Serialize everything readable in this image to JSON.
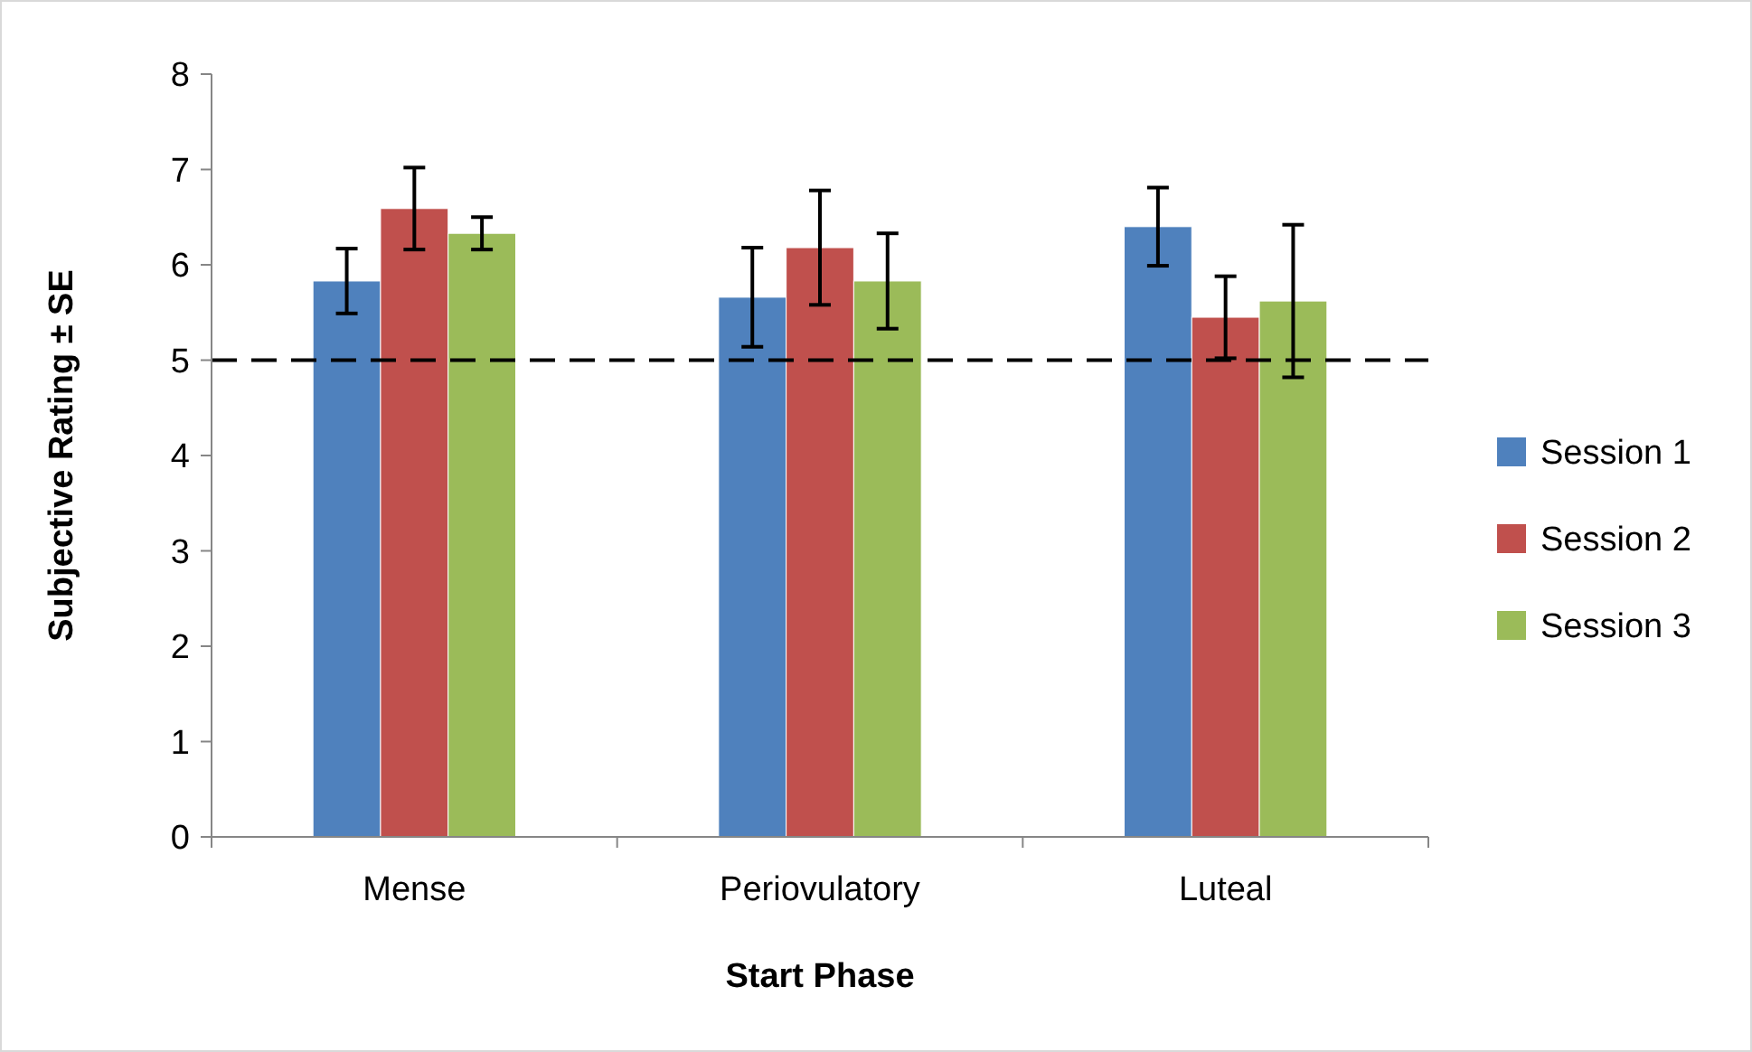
{
  "chart_data": {
    "type": "bar",
    "xlabel": "Start Phase",
    "ylabel": "Subjective Rating ± SE",
    "categories": [
      "Mense",
      "Periovulatory",
      "Luteal"
    ],
    "series": [
      {
        "name": "Session 1",
        "color": "#4f81bd",
        "values": [
          5.83,
          5.66,
          6.4
        ],
        "errors": [
          0.34,
          0.52,
          0.41
        ]
      },
      {
        "name": "Session 2",
        "color": "#c0504d",
        "values": [
          6.59,
          6.18,
          5.45
        ],
        "errors": [
          0.43,
          0.6,
          0.43
        ]
      },
      {
        "name": "Session 3",
        "color": "#9bbb59",
        "values": [
          6.33,
          5.83,
          5.62
        ],
        "errors": [
          0.17,
          0.5,
          0.8
        ]
      }
    ],
    "ylim": [
      0,
      8
    ],
    "yticks": [
      0,
      1,
      2,
      3,
      4,
      5,
      6,
      7,
      8
    ],
    "ref_lines": [
      {
        "axis": "y",
        "value": 5,
        "color": "#000000",
        "line_style": "dashed"
      }
    ],
    "legend": "right",
    "grid": false
  }
}
